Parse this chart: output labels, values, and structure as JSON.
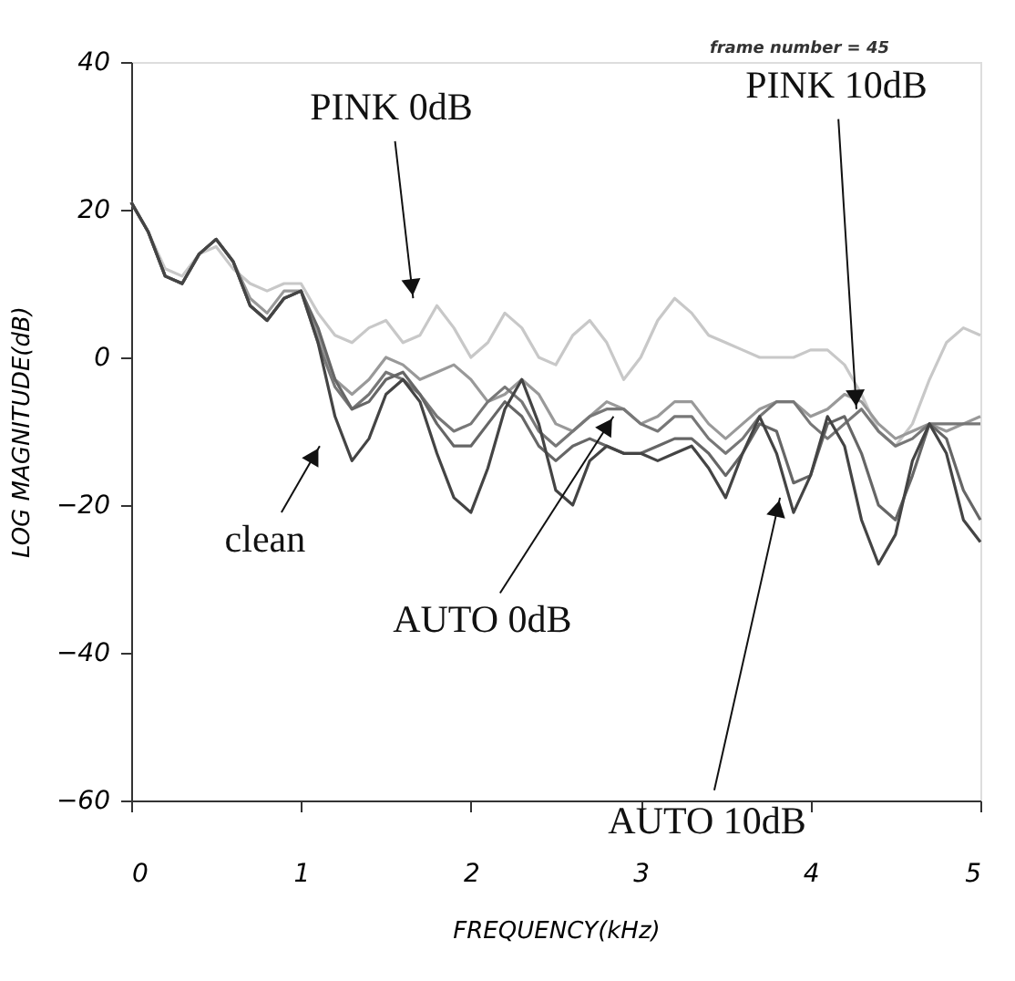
{
  "chart_data": {
    "type": "line",
    "xlabel": "FREQUENCY(kHz)",
    "ylabel": "LOG MAGNITUDE(dB)",
    "xlim": [
      0,
      5
    ],
    "ylim": [
      -60,
      40
    ],
    "xticks": [
      0,
      1,
      2,
      3,
      4,
      5
    ],
    "yticks": [
      -60,
      -40,
      -20,
      0,
      20,
      40
    ],
    "grid": false,
    "legend": false,
    "marker": "none",
    "line_style": "solid",
    "x": [
      0,
      0.1,
      0.2,
      0.3,
      0.4,
      0.5,
      0.6,
      0.7,
      0.8,
      0.9,
      1.0,
      1.1,
      1.2,
      1.3,
      1.4,
      1.5,
      1.6,
      1.7,
      1.8,
      1.9,
      2.0,
      2.1,
      2.2,
      2.3,
      2.4,
      2.5,
      2.6,
      2.7,
      2.8,
      2.9,
      3.0,
      3.1,
      3.2,
      3.3,
      3.4,
      3.5,
      3.6,
      3.7,
      3.8,
      3.9,
      4.0,
      4.1,
      4.2,
      4.3,
      4.4,
      4.5,
      4.6,
      4.7,
      4.8,
      4.9,
      5.0
    ],
    "series": [
      {
        "name": "PINK 0dB",
        "color": "#c8c8c8",
        "values": [
          21,
          17,
          12,
          11,
          14,
          15,
          12,
          10,
          9,
          10,
          10,
          6,
          3,
          2,
          4,
          5,
          2,
          3,
          7,
          4,
          0,
          2,
          6,
          4,
          0,
          -1,
          3,
          5,
          2,
          -3,
          0,
          5,
          8,
          6,
          3,
          2,
          1,
          0,
          0,
          0,
          1,
          1,
          -1,
          -5,
          -10,
          -12,
          -9,
          -3,
          2,
          4,
          3
        ]
      },
      {
        "name": "PINK 10dB",
        "color": "#999999",
        "values": [
          21,
          17,
          11,
          10,
          14,
          16,
          13,
          8,
          6,
          9,
          9,
          3,
          -3,
          -5,
          -3,
          0,
          -1,
          -3,
          -2,
          -1,
          -3,
          -6,
          -5,
          -3,
          -5,
          -9,
          -10,
          -8,
          -6,
          -7,
          -9,
          -8,
          -6,
          -6,
          -9,
          -11,
          -9,
          -7,
          -6,
          -6,
          -8,
          -7,
          -5,
          -6,
          -9,
          -11,
          -10,
          -9,
          -10,
          -9,
          -8
        ]
      },
      {
        "name": "AUTO 0dB",
        "color": "#777777",
        "values": [
          21,
          17,
          11,
          10,
          14,
          16,
          13,
          7,
          5,
          8,
          9,
          2,
          -4,
          -7,
          -5,
          -2,
          -3,
          -5,
          -8,
          -10,
          -9,
          -6,
          -4,
          -6,
          -10,
          -12,
          -10,
          -8,
          -7,
          -7,
          -9,
          -10,
          -8,
          -8,
          -11,
          -13,
          -11,
          -8,
          -6,
          -6,
          -9,
          -11,
          -9,
          -7,
          -10,
          -12,
          -11,
          -9,
          -9,
          -9,
          -9
        ]
      },
      {
        "name": "AUTO 10dB",
        "color": "#666666",
        "values": [
          21,
          17,
          11,
          10,
          14,
          16,
          13,
          7,
          5,
          8,
          9,
          4,
          -3,
          -7,
          -6,
          -3,
          -2,
          -5,
          -9,
          -12,
          -12,
          -9,
          -6,
          -8,
          -12,
          -14,
          -12,
          -11,
          -12,
          -13,
          -13,
          -12,
          -11,
          -11,
          -13,
          -16,
          -13,
          -9,
          -10,
          -17,
          -16,
          -9,
          -8,
          -13,
          -20,
          -22,
          -16,
          -9,
          -11,
          -18,
          -22
        ]
      },
      {
        "name": "clean",
        "color": "#444444",
        "values": [
          21,
          17,
          11,
          10,
          14,
          16,
          13,
          7,
          5,
          8,
          9,
          2,
          -8,
          -14,
          -11,
          -5,
          -3,
          -6,
          -13,
          -19,
          -21,
          -15,
          -7,
          -3,
          -9,
          -18,
          -20,
          -14,
          -12,
          -13,
          -13,
          -14,
          -13,
          -12,
          -15,
          -19,
          -13,
          -8,
          -13,
          -21,
          -16,
          -8,
          -12,
          -22,
          -28,
          -24,
          -14,
          -9,
          -13,
          -22,
          -25
        ]
      }
    ],
    "annotations": [
      "frame number = 45"
    ]
  }
}
